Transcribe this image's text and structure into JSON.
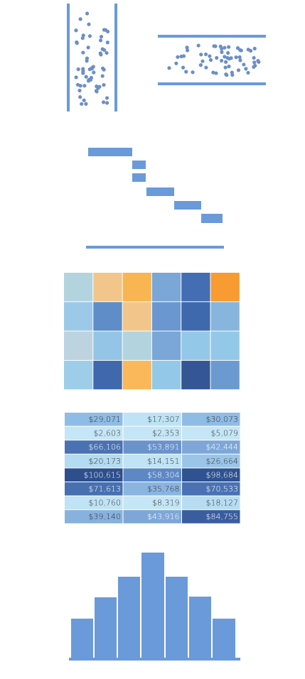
{
  "table": {
    "rows": [
      [
        "$29,071",
        "$17,307",
        "$30,073"
      ],
      [
        "$2,603",
        "$2,353",
        "$5,079"
      ],
      [
        "$66,106",
        "$53,891",
        "$42,444"
      ],
      [
        "$20,173",
        "$14,151",
        "$26,664"
      ],
      [
        "$100,615",
        "$58,304",
        "$98,684"
      ],
      [
        "$71,613",
        "$35,768",
        "$70,533"
      ],
      [
        "$10,760",
        "$8,319",
        "$18,127"
      ],
      [
        "$39,140",
        "$43,916",
        "$84,755"
      ]
    ]
  }
}
